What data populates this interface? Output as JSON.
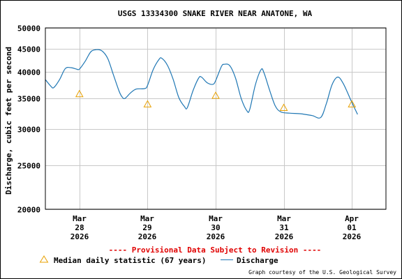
{
  "chart_data": {
    "type": "line",
    "title": "USGS 13334300 SNAKE RIVER NEAR ANATONE, WA",
    "ylabel": "Discharge, cubic feet per second",
    "xlabel": "",
    "y_scale": "log",
    "ylim": [
      20000,
      50000
    ],
    "y_ticks": [
      {
        "value": 20000,
        "label": "20000"
      },
      {
        "value": 25000,
        "label": "25000"
      },
      {
        "value": 30000,
        "label": "30000"
      },
      {
        "value": 35000,
        "label": "35000"
      },
      {
        "value": 40000,
        "label": "40000"
      },
      {
        "value": 45000,
        "label": "45000"
      },
      {
        "value": 50000,
        "label": "50000"
      }
    ],
    "x_range": [
      "2026-03-27T12:00",
      "2026-04-01T12:00"
    ],
    "x_ticks": [
      {
        "x": "2026-03-28T00:00",
        "lines": [
          "Mar",
          "28",
          "2026"
        ]
      },
      {
        "x": "2026-03-29T00:00",
        "lines": [
          "Mar",
          "29",
          "2026"
        ]
      },
      {
        "x": "2026-03-30T00:00",
        "lines": [
          "Mar",
          "30",
          "2026"
        ]
      },
      {
        "x": "2026-03-31T00:00",
        "lines": [
          "Mar",
          "31",
          "2026"
        ]
      },
      {
        "x": "2026-04-01T00:00",
        "lines": [
          "Apr",
          "01",
          "2026"
        ]
      }
    ],
    "grid": true,
    "series": [
      {
        "name": "Discharge",
        "color": "#1f77b4",
        "points": [
          [
            "2026-03-27T12:00",
            38500
          ],
          [
            "2026-03-27T14:00",
            37200
          ],
          [
            "2026-03-27T15:00",
            37000
          ],
          [
            "2026-03-27T17:00",
            38500
          ],
          [
            "2026-03-27T19:00",
            40700
          ],
          [
            "2026-03-27T21:00",
            40900
          ],
          [
            "2026-03-27T23:00",
            40600
          ],
          [
            "2026-03-28T00:00",
            40600
          ],
          [
            "2026-03-28T02:00",
            42200
          ],
          [
            "2026-03-28T04:00",
            44300
          ],
          [
            "2026-03-28T06:00",
            44800
          ],
          [
            "2026-03-28T08:00",
            44500
          ],
          [
            "2026-03-28T10:00",
            42800
          ],
          [
            "2026-03-28T12:00",
            39400
          ],
          [
            "2026-03-28T14:00",
            36300
          ],
          [
            "2026-03-28T15:00",
            35300
          ],
          [
            "2026-03-28T16:00",
            35000
          ],
          [
            "2026-03-28T18:00",
            36000
          ],
          [
            "2026-03-28T20:00",
            36700
          ],
          [
            "2026-03-28T23:00",
            36800
          ],
          [
            "2026-03-29T00:00",
            37400
          ],
          [
            "2026-03-29T02:00",
            40500
          ],
          [
            "2026-03-29T04:00",
            42600
          ],
          [
            "2026-03-29T05:00",
            42900
          ],
          [
            "2026-03-29T07:00",
            41400
          ],
          [
            "2026-03-29T09:00",
            38600
          ],
          [
            "2026-03-29T11:00",
            35200
          ],
          [
            "2026-03-29T13:00",
            33600
          ],
          [
            "2026-03-29T14:00",
            33400
          ],
          [
            "2026-03-29T16:00",
            36400
          ],
          [
            "2026-03-29T18:00",
            38800
          ],
          [
            "2026-03-29T19:00",
            39000
          ],
          [
            "2026-03-29T21:00",
            37900
          ],
          [
            "2026-03-29T23:00",
            37600
          ],
          [
            "2026-03-30T00:00",
            38300
          ],
          [
            "2026-03-30T02:00",
            41100
          ],
          [
            "2026-03-30T03:00",
            41600
          ],
          [
            "2026-03-30T05:00",
            41300
          ],
          [
            "2026-03-30T07:00",
            38800
          ],
          [
            "2026-03-30T09:00",
            35000
          ],
          [
            "2026-03-30T11:00",
            32900
          ],
          [
            "2026-03-30T12:00",
            33100
          ],
          [
            "2026-03-30T14:00",
            37500
          ],
          [
            "2026-03-30T16:00",
            40500
          ],
          [
            "2026-03-30T17:00",
            39900
          ],
          [
            "2026-03-30T19:00",
            36500
          ],
          [
            "2026-03-30T21:00",
            33700
          ],
          [
            "2026-03-30T23:00",
            32700
          ],
          [
            "2026-03-31T02:00",
            32500
          ],
          [
            "2026-03-31T06:00",
            32400
          ],
          [
            "2026-03-31T10:00",
            32100
          ],
          [
            "2026-03-31T13:00",
            31800
          ],
          [
            "2026-03-31T15:00",
            34100
          ],
          [
            "2026-03-31T17:00",
            37500
          ],
          [
            "2026-03-31T19:00",
            39000
          ],
          [
            "2026-03-31T21:00",
            37700
          ],
          [
            "2026-04-01T00:00",
            34300
          ],
          [
            "2026-04-01T02:00",
            32300
          ]
        ]
      },
      {
        "name": "Median daily statistic (67 years)",
        "color": "#e8a000",
        "marker": "triangle",
        "points": [
          [
            "2026-03-28T00:00",
            35800
          ],
          [
            "2026-03-29T00:00",
            34000
          ],
          [
            "2026-03-30T00:00",
            35500
          ],
          [
            "2026-03-31T00:00",
            33400
          ],
          [
            "2026-04-01T00:00",
            34000
          ]
        ]
      }
    ],
    "legend": {
      "position": "bottom",
      "items": [
        {
          "label": "Median daily statistic (67 years)",
          "marker": "triangle",
          "color": "#e8a000"
        },
        {
          "label": "Discharge",
          "marker": "line",
          "color": "#1f77b4"
        }
      ]
    },
    "annotations": {
      "provisional": "---- Provisional Data Subject to Revision ----",
      "provisional_color": "#e00000",
      "credit": "Graph courtesy of the U.S. Geological Survey"
    }
  }
}
